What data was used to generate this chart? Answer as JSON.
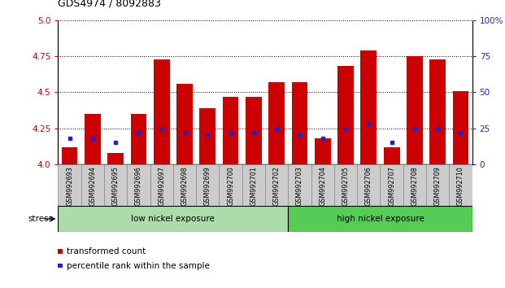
{
  "title": "GDS4974 / 8092883",
  "categories": [
    "GSM992693",
    "GSM992694",
    "GSM992695",
    "GSM992696",
    "GSM992697",
    "GSM992698",
    "GSM992699",
    "GSM992700",
    "GSM992701",
    "GSM992702",
    "GSM992703",
    "GSM992704",
    "GSM992705",
    "GSM992706",
    "GSM992707",
    "GSM992708",
    "GSM992709",
    "GSM992710"
  ],
  "red_values": [
    4.12,
    4.35,
    4.08,
    4.35,
    4.73,
    4.56,
    4.39,
    4.47,
    4.47,
    4.57,
    4.57,
    4.18,
    4.68,
    4.79,
    4.12,
    4.75,
    4.73,
    4.51
  ],
  "blue_values": [
    18,
    18,
    15,
    22,
    25,
    22,
    20,
    22,
    22,
    25,
    20,
    18,
    25,
    28,
    15,
    25,
    25,
    22
  ],
  "ylim_left": [
    4.0,
    5.0
  ],
  "ylim_right": [
    0,
    100
  ],
  "yticks_left": [
    4.0,
    4.25,
    4.5,
    4.75,
    5.0
  ],
  "yticks_right": [
    0,
    25,
    50,
    75,
    100
  ],
  "ytick_labels_right": [
    "0",
    "25",
    "50",
    "75",
    "100%"
  ],
  "group1_label": "low nickel exposure",
  "group2_label": "high nickel exposure",
  "group1_count": 10,
  "stress_label": "stress",
  "legend1": "transformed count",
  "legend2": "percentile rank within the sample",
  "bar_color": "#cc0000",
  "blue_color": "#2222cc",
  "group1_color": "#aaddaa",
  "group2_color": "#55cc55",
  "left_tick_color": "#cc0000",
  "right_tick_color": "#2222cc",
  "bar_width": 0.7,
  "xtick_bg_color": "#cccccc",
  "fig_bg": "#ffffff"
}
